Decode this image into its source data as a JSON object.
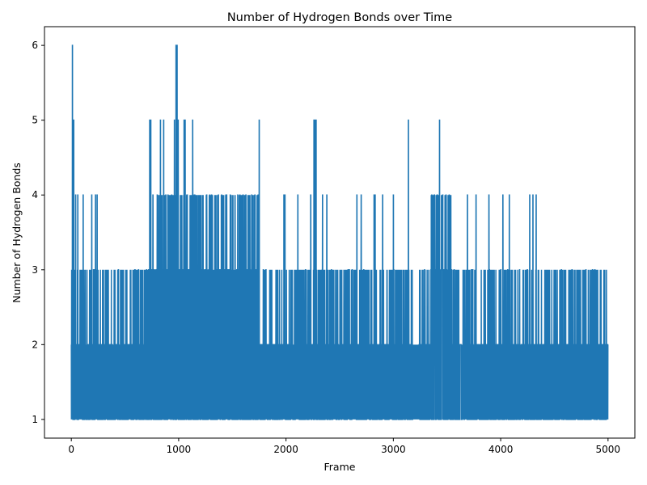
{
  "chart_data": {
    "type": "line",
    "title": "Number of Hydrogen Bonds over Time",
    "xlabel": "Frame",
    "ylabel": "Number of Hydrogen Bonds",
    "xlim": [
      -250,
      5250
    ],
    "ylim": [
      0.75,
      6.25
    ],
    "xticks": [
      0,
      1000,
      2000,
      3000,
      4000,
      5000
    ],
    "yticks": [
      1,
      2,
      3,
      4,
      5,
      6
    ],
    "grid": false,
    "legend": "none",
    "frame_count": 5000,
    "series": [
      {
        "color": "#1f77b4",
        "segments": [
          {
            "x0": 0,
            "x1": 700,
            "base_low": 1,
            "base_high": 2,
            "secondary": 3
          },
          {
            "x0": 700,
            "x1": 1750,
            "base_low": 1,
            "base_high": 3,
            "secondary": 4
          },
          {
            "x0": 1750,
            "x1": 3350,
            "base_low": 1,
            "base_high": 2,
            "secondary": 3
          },
          {
            "x0": 3350,
            "x1": 3550,
            "base_low": 1,
            "base_high": 3,
            "secondary": 4
          },
          {
            "x0": 3550,
            "x1": 5000,
            "base_low": 1,
            "base_high": 2,
            "secondary": 3
          }
        ],
        "peaks": [
          {
            "x": 10,
            "y": 6
          },
          {
            "x": 22,
            "y": 5
          },
          {
            "x": 40,
            "y": 4
          },
          {
            "x": 60,
            "y": 4
          },
          {
            "x": 110,
            "y": 4
          },
          {
            "x": 190,
            "y": 4
          },
          {
            "x": 225,
            "y": 4
          },
          {
            "x": 240,
            "y": 4
          },
          {
            "x": 730,
            "y": 5
          },
          {
            "x": 740,
            "y": 5
          },
          {
            "x": 760,
            "y": 4
          },
          {
            "x": 800,
            "y": 4
          },
          {
            "x": 830,
            "y": 5
          },
          {
            "x": 860,
            "y": 5
          },
          {
            "x": 880,
            "y": 4
          },
          {
            "x": 960,
            "y": 5
          },
          {
            "x": 975,
            "y": 6
          },
          {
            "x": 985,
            "y": 6
          },
          {
            "x": 995,
            "y": 5
          },
          {
            "x": 1050,
            "y": 5
          },
          {
            "x": 1060,
            "y": 5
          },
          {
            "x": 1080,
            "y": 4
          },
          {
            "x": 1130,
            "y": 5
          },
          {
            "x": 1150,
            "y": 4
          },
          {
            "x": 1260,
            "y": 4
          },
          {
            "x": 1290,
            "y": 4
          },
          {
            "x": 1370,
            "y": 4
          },
          {
            "x": 1400,
            "y": 4
          },
          {
            "x": 1440,
            "y": 4
          },
          {
            "x": 1480,
            "y": 4
          },
          {
            "x": 1550,
            "y": 4
          },
          {
            "x": 1570,
            "y": 4
          },
          {
            "x": 1600,
            "y": 4
          },
          {
            "x": 1680,
            "y": 4
          },
          {
            "x": 1710,
            "y": 4
          },
          {
            "x": 1740,
            "y": 4
          },
          {
            "x": 1750,
            "y": 5
          },
          {
            "x": 1980,
            "y": 4
          },
          {
            "x": 1990,
            "y": 4
          },
          {
            "x": 2110,
            "y": 4
          },
          {
            "x": 2230,
            "y": 4
          },
          {
            "x": 2260,
            "y": 5
          },
          {
            "x": 2270,
            "y": 5
          },
          {
            "x": 2280,
            "y": 5
          },
          {
            "x": 2340,
            "y": 4
          },
          {
            "x": 2380,
            "y": 4
          },
          {
            "x": 2660,
            "y": 4
          },
          {
            "x": 2700,
            "y": 4
          },
          {
            "x": 2820,
            "y": 4
          },
          {
            "x": 2830,
            "y": 4
          },
          {
            "x": 2900,
            "y": 4
          },
          {
            "x": 3000,
            "y": 4
          },
          {
            "x": 3140,
            "y": 5
          },
          {
            "x": 3380,
            "y": 4
          },
          {
            "x": 3410,
            "y": 4
          },
          {
            "x": 3430,
            "y": 5
          },
          {
            "x": 3460,
            "y": 4
          },
          {
            "x": 3490,
            "y": 4
          },
          {
            "x": 3520,
            "y": 4
          },
          {
            "x": 3690,
            "y": 4
          },
          {
            "x": 3770,
            "y": 4
          },
          {
            "x": 3890,
            "y": 4
          },
          {
            "x": 4020,
            "y": 4
          },
          {
            "x": 4080,
            "y": 4
          },
          {
            "x": 4270,
            "y": 4
          },
          {
            "x": 4300,
            "y": 4
          },
          {
            "x": 4330,
            "y": 4
          }
        ],
        "gaps": [
          [
            3180,
            3240
          ]
        ]
      }
    ]
  }
}
